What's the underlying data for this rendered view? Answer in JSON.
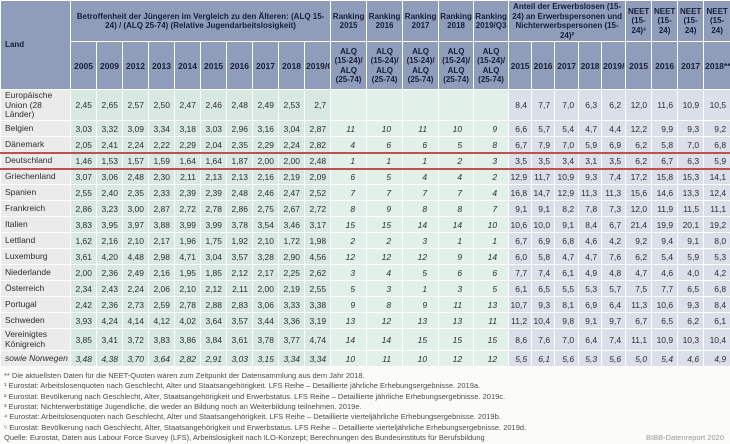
{
  "colors": {
    "header_bg": "#8f9cba",
    "header_text": "#14203a",
    "years_block_bg": "#d8e9e4",
    "ranking_block_bg": "#e2f0ea",
    "share_neet_block_bg": "#dbdfe9",
    "label_col_bg": "#ebebeb",
    "highlight_line": "#c0504d"
  },
  "chart_data": {
    "type": "table",
    "title": "Betroffenheit der Jüngeren im Vergleich zu den Älteren: (ALQ 15-24) / (ALQ 25-74) (Relative Jugendarbeitslosigkeit)"
  },
  "table": {
    "land_label": "Land",
    "group_betroffenheit": "Betroffenheit der Jüngeren im Vergleich zu den Älteren: (ALQ 15-24) / (ALQ 25-74) (Relative Jugendarbeitslosigkeit)",
    "ranking_labels": [
      "Ranking 2015",
      "Ranking 2016",
      "Ranking 2017",
      "Ranking 2018",
      "Ranking 2019/Q3"
    ],
    "ranking_sub": "ALQ (15-24)/ ALQ (25-74)",
    "group_anteil": "Anteil der Erwerbslosen (15-24) an Erwerbspersonen und Nichterwerbspersonen (15-24)²",
    "neet_labels": [
      "NEET (15-24)³",
      "NEET (15-24)",
      "NEET (15-24)",
      "NEET (15-24)"
    ],
    "year_cols": [
      "2005",
      "2009",
      "2012",
      "2013",
      "2014",
      "2015",
      "2016",
      "2017",
      "2018",
      "2019/Q3"
    ],
    "anteil_years": [
      "2015",
      "2016",
      "2017",
      "2018",
      "2019/Q3⁵"
    ],
    "neet_years": [
      "2015",
      "2016",
      "2017",
      "2018**"
    ],
    "rows": [
      {
        "land": "Europäische Union (28 Länder)",
        "highlight": false,
        "italic": false,
        "values": [
          "2,45",
          "2,65",
          "2,57",
          "2,50",
          "2,47",
          "2,46",
          "2,48",
          "2,49",
          "2,53",
          "2,7"
        ],
        "ranking": [
          "",
          "",
          "",
          "",
          ""
        ],
        "anteil": [
          "8,4",
          "7,7",
          "7,0",
          "6,3",
          "6,2"
        ],
        "neet": [
          "12,0",
          "11,6",
          "10,9",
          "10,5"
        ]
      },
      {
        "land": "Belgien",
        "highlight": false,
        "italic": false,
        "values": [
          "3,03",
          "3,32",
          "3,09",
          "3,34",
          "3,18",
          "3,03",
          "2,96",
          "3,16",
          "3,04",
          "2,87"
        ],
        "ranking": [
          "11",
          "10",
          "11",
          "10",
          "9"
        ],
        "anteil": [
          "6,6",
          "5,7",
          "5,4",
          "4,7",
          "4,4"
        ],
        "neet": [
          "12,2",
          "9,9",
          "9,3",
          "9,2"
        ]
      },
      {
        "land": "Dänemark",
        "highlight": false,
        "italic": false,
        "values": [
          "2,05",
          "2,41",
          "2,24",
          "2,22",
          "2,29",
          "2,04",
          "2,35",
          "2,29",
          "2,24",
          "2,82"
        ],
        "ranking": [
          "4",
          "6",
          "6",
          "5",
          "8"
        ],
        "anteil": [
          "6,7",
          "7,9",
          "7,0",
          "5,9",
          "6,9"
        ],
        "neet": [
          "6,2",
          "5,8",
          "7,0",
          "6,8"
        ]
      },
      {
        "land": "Deutschland",
        "highlight": true,
        "italic": false,
        "values": [
          "1,46",
          "1,53",
          "1,57",
          "1,59",
          "1,64",
          "1,64",
          "1,87",
          "2,00",
          "2,00",
          "2,48"
        ],
        "ranking": [
          "1",
          "1",
          "1",
          "2",
          "3"
        ],
        "anteil": [
          "3,5",
          "3,5",
          "3,4",
          "3,1",
          "3,5"
        ],
        "neet": [
          "6,2",
          "6,7",
          "6,3",
          "5,9"
        ]
      },
      {
        "land": "Griechenland",
        "highlight": false,
        "italic": false,
        "values": [
          "3,07",
          "3,06",
          "2,48",
          "2,30",
          "2,11",
          "2,13",
          "2,13",
          "2,16",
          "2,19",
          "2,09"
        ],
        "ranking": [
          "6",
          "5",
          "4",
          "4",
          "2"
        ],
        "anteil": [
          "12,9",
          "11,7",
          "10,9",
          "9,3",
          "7,4"
        ],
        "neet": [
          "17,2",
          "15,8",
          "15,3",
          "14,1"
        ]
      },
      {
        "land": "Spanien",
        "highlight": false,
        "italic": false,
        "values": [
          "2,55",
          "2,40",
          "2,35",
          "2,33",
          "2,39",
          "2,39",
          "2,48",
          "2,46",
          "2,47",
          "2,52"
        ],
        "ranking": [
          "7",
          "7",
          "7",
          "7",
          "4"
        ],
        "anteil": [
          "16,8",
          "14,7",
          "12,9",
          "11,3",
          "11,3"
        ],
        "neet": [
          "15,6",
          "14,6",
          "13,3",
          "12,4"
        ]
      },
      {
        "land": "Frankreich",
        "highlight": false,
        "italic": false,
        "values": [
          "2,86",
          "3,23",
          "3,00",
          "2,87",
          "2,72",
          "2,78",
          "2,86",
          "2,75",
          "2,67",
          "2,72"
        ],
        "ranking": [
          "8",
          "9",
          "8",
          "8",
          "7"
        ],
        "anteil": [
          "9,1",
          "9,1",
          "8,2",
          "7,8",
          "7,3"
        ],
        "neet": [
          "12,0",
          "11,9",
          "11,5",
          "11,1"
        ]
      },
      {
        "land": "Italien",
        "highlight": false,
        "italic": false,
        "values": [
          "3,83",
          "3,95",
          "3,97",
          "3,88",
          "3,99",
          "3,99",
          "3,78",
          "3,54",
          "3,46",
          "3,17"
        ],
        "ranking": [
          "15",
          "15",
          "14",
          "14",
          "10"
        ],
        "anteil": [
          "10,6",
          "10,0",
          "9,1",
          "8,4",
          "6,7"
        ],
        "neet": [
          "21,4",
          "19,9",
          "20,1",
          "19,2"
        ]
      },
      {
        "land": "Lettland",
        "highlight": false,
        "italic": false,
        "values": [
          "1,62",
          "2,16",
          "2,10",
          "2,17",
          "1,96",
          "1,75",
          "1,92",
          "2,10",
          "1,72",
          "1,98"
        ],
        "ranking": [
          "2",
          "2",
          "3",
          "1",
          "1"
        ],
        "anteil": [
          "6,7",
          "6,9",
          "6,8",
          "4,6",
          "4,2"
        ],
        "neet": [
          "9,2",
          "9,4",
          "9,1",
          "8,0"
        ]
      },
      {
        "land": "Luxemburg",
        "highlight": false,
        "italic": false,
        "values": [
          "3,61",
          "4,20",
          "4,48",
          "2,98",
          "4,71",
          "3,04",
          "3,57",
          "3,28",
          "2,90",
          "4,56"
        ],
        "ranking": [
          "12",
          "12",
          "12",
          "9",
          "14"
        ],
        "anteil": [
          "6,0",
          "5,8",
          "4,7",
          "4,7",
          "7,6"
        ],
        "neet": [
          "6,2",
          "5,4",
          "5,9",
          "5,3"
        ]
      },
      {
        "land": "Niederlande",
        "highlight": false,
        "italic": false,
        "values": [
          "2,00",
          "2,36",
          "2,49",
          "2,16",
          "1,95",
          "1,85",
          "2,12",
          "2,17",
          "2,25",
          "2,62"
        ],
        "ranking": [
          "3",
          "4",
          "5",
          "6",
          "6"
        ],
        "anteil": [
          "7,7",
          "7,4",
          "6,1",
          "4,9",
          "4,8"
        ],
        "neet": [
          "4,7",
          "4,6",
          "4,0",
          "4,2"
        ]
      },
      {
        "land": "Österreich",
        "highlight": false,
        "italic": false,
        "values": [
          "2,34",
          "2,43",
          "2,24",
          "2,06",
          "2,10",
          "2,12",
          "2,11",
          "2,00",
          "2,19",
          "2,55"
        ],
        "ranking": [
          "5",
          "3",
          "1",
          "3",
          "5"
        ],
        "anteil": [
          "6,1",
          "6,5",
          "5,5",
          "5,3",
          "5,7"
        ],
        "neet": [
          "7,5",
          "7,7",
          "6,5",
          "6,8"
        ]
      },
      {
        "land": "Portugal",
        "highlight": false,
        "italic": false,
        "values": [
          "2,42",
          "2,36",
          "2,73",
          "2,59",
          "2,78",
          "2,88",
          "2,83",
          "3,06",
          "3,33",
          "3,38"
        ],
        "ranking": [
          "9",
          "8",
          "9",
          "11",
          "13"
        ],
        "anteil": [
          "10,7",
          "9,3",
          "8,1",
          "6,9",
          "6,4"
        ],
        "neet": [
          "11,3",
          "10,6",
          "9,3",
          "8,4"
        ]
      },
      {
        "land": "Schweden",
        "highlight": false,
        "italic": false,
        "values": [
          "3,93",
          "4,24",
          "4,14",
          "4,12",
          "4,02",
          "3,64",
          "3,57",
          "3,44",
          "3,36",
          "3,19"
        ],
        "ranking": [
          "13",
          "12",
          "13",
          "13",
          "11"
        ],
        "anteil": [
          "11,2",
          "10,4",
          "9,8",
          "9,1",
          "9,7"
        ],
        "neet": [
          "6,7",
          "6,5",
          "6,2",
          "6,1"
        ]
      },
      {
        "land": "Vereinigtes Königreich",
        "highlight": false,
        "italic": false,
        "values": [
          "3,85",
          "3,41",
          "3,72",
          "3,83",
          "3,86",
          "3,84",
          "3,61",
          "3,78",
          "3,77",
          "4,74"
        ],
        "ranking": [
          "14",
          "14",
          "15",
          "15",
          "15"
        ],
        "anteil": [
          "8,6",
          "7,6",
          "7,0",
          "6,4",
          "7,4"
        ],
        "neet": [
          "11,1",
          "10,9",
          "10,3",
          "10,4"
        ]
      },
      {
        "land": "sowie Norwegen",
        "highlight": false,
        "italic": true,
        "values": [
          "3,48",
          "4,38",
          "3,70",
          "3,64",
          "2,82",
          "2,91",
          "3,03",
          "3,15",
          "3,34",
          "3,34"
        ],
        "ranking": [
          "10",
          "11",
          "10",
          "12",
          "12"
        ],
        "anteil": [
          "5,5",
          "6,1",
          "5,6",
          "5,3",
          "5,6"
        ],
        "neet": [
          "5,0",
          "5,4",
          "4,6",
          "4,9"
        ]
      }
    ]
  },
  "footnotes": [
    "** Die aktuellsten Daten für die NEET-Quoten waren zum Zeitpunkt der Datensammlung aus dem Jahr 2018.",
    "¹ Eurostat: Arbeitslosenquoten nach Geschlecht, Alter und Staatsangehörigkeit. LFS Reihe – Detaillierte jährliche Erhebungsergebnisse. 2019a.",
    "² Eurostat: Bevölkerung nach Geschlecht, Alter, Staatsangehörigkeit und Erwerbstatus. LFS Reihe – Detaillierte jährliche Erhebungsergebnisse. 2019c.",
    "³ Eurostat: Nichterwerbstätige Jugendliche, die weder an Bildung noch an Weiterbildung teilnehmen. 2019e.",
    "⁴ Eurostat: Arbeitslosenquoten nach Geschlecht, Alter und Staatsangehörigkeit. LFS Reihe – Detaillierte vierteljährliche Erhebungsergebnisse. 2019b.",
    "⁵ Eurostat: Bevölkerung nach Geschlecht, Alter, Staatsangehörigkeit und Erwerbstatus. LFS Reihe – Detaillierte vierteljährliche Erhebungsergebnisse. 2019d."
  ],
  "source": "Quelle: Eurostat, Daten aus Labour Force Survey (LFS), Arbeitslosigkeit nach ILO-Konzept; Berechnungen des Bundesinstituts für Berufsbildung",
  "brand": "BIBB-Datenreport 2020"
}
